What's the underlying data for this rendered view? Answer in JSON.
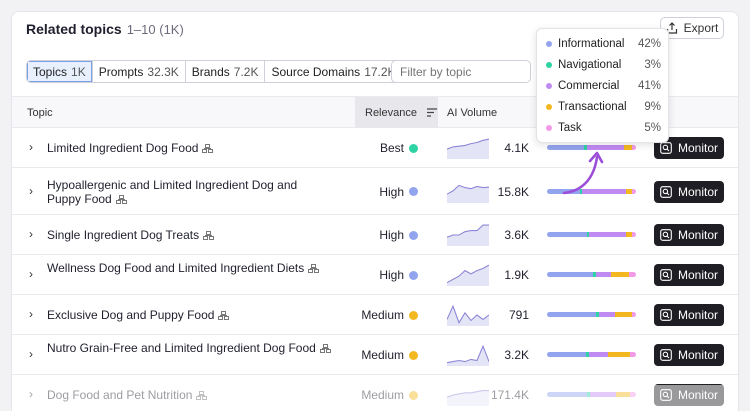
{
  "header": {
    "title": "Related topics",
    "subtitle": "1–10 (1K)",
    "export_label": "Export"
  },
  "tabs": [
    {
      "label": "Topics",
      "count": "1K",
      "active": true
    },
    {
      "label": "Prompts",
      "count": "32.3K",
      "active": false
    },
    {
      "label": "Brands",
      "count": "7.2K",
      "active": false
    },
    {
      "label": "Source Domains",
      "count": "17.2K",
      "active": false
    }
  ],
  "filter": {
    "placeholder": "Filter by topic"
  },
  "columns": {
    "topic": "Topic",
    "relevance": "Relevance",
    "ai_volume": "AI Volume"
  },
  "colors": {
    "informational": "#93a4ee",
    "navigational": "#2ed3a4",
    "commercial": "#c08af3",
    "transactional": "#f3b820",
    "task": "#f29ae6",
    "best": "#2ed3a4",
    "high": "#93a4ee",
    "medium": "#f3b820"
  },
  "intent_legend": [
    {
      "label": "Informational",
      "pct": "42%",
      "color": "#93a4ee"
    },
    {
      "label": "Navigational",
      "pct": "3%",
      "color": "#2ed3a4"
    },
    {
      "label": "Commercial",
      "pct": "41%",
      "color": "#c08af3"
    },
    {
      "label": "Transactional",
      "pct": "9%",
      "color": "#f3b820"
    },
    {
      "label": "Task",
      "pct": "5%",
      "color": "#f29ae6"
    }
  ],
  "monitor_label": "Monitor",
  "rows": [
    {
      "topic": "Limited Ingredient Dog Food",
      "relevance": "Best",
      "rel_color": "#2ed3a4",
      "volume": "4.1K",
      "intent": [
        42,
        3,
        41,
        9,
        5
      ],
      "spark": [
        0.55,
        0.45,
        0.42,
        0.38,
        0.3,
        0.25,
        0.15,
        0.1
      ]
    },
    {
      "topic": "Hypoallergenic and Limited Ingredient Dog and Puppy Food",
      "relevance": "High",
      "rel_color": "#93a4ee",
      "volume": "15.8K",
      "intent": [
        37,
        2,
        50,
        7,
        4
      ],
      "spark": [
        0.6,
        0.45,
        0.2,
        0.3,
        0.35,
        0.25,
        0.3,
        0.28
      ]
    },
    {
      "topic": "Single Ingredient Dog Treats",
      "relevance": "High",
      "rel_color": "#93a4ee",
      "volume": "3.6K",
      "intent": [
        45,
        2,
        42,
        6,
        5
      ],
      "spark": [
        0.6,
        0.5,
        0.5,
        0.35,
        0.3,
        0.3,
        0.05,
        0.05
      ]
    },
    {
      "topic": "Wellness Dog Food and Limited Ingredient Diets",
      "relevance": "High",
      "rel_color": "#93a4ee",
      "volume": "1.9K",
      "intent": [
        52,
        3,
        17,
        20,
        8
      ],
      "spark": [
        0.85,
        0.7,
        0.55,
        0.3,
        0.45,
        0.3,
        0.2,
        0.05
      ]
    },
    {
      "topic": "Exclusive Dog and Puppy Food",
      "relevance": "Medium",
      "rel_color": "#f3b820",
      "volume": "791",
      "intent": [
        55,
        3,
        18,
        19,
        5
      ],
      "spark": [
        0.7,
        0.1,
        0.85,
        0.4,
        0.75,
        0.5,
        0.7,
        0.5
      ]
    },
    {
      "topic": "Nutro Grain-Free and Limited Ingredient Dog Food",
      "relevance": "Medium",
      "rel_color": "#f3b820",
      "volume": "3.2K",
      "intent": [
        44,
        3,
        22,
        24,
        7
      ],
      "spark": [
        0.85,
        0.8,
        0.75,
        0.8,
        0.7,
        0.75,
        0.1,
        0.8
      ]
    },
    {
      "topic": "Dog Food and Pet Nutrition",
      "relevance": "Medium",
      "rel_color": "#f3b820",
      "volume": "171.4K",
      "intent": [
        45,
        3,
        30,
        15,
        7
      ],
      "spark": [
        0.6,
        0.5,
        0.45,
        0.4,
        0.4,
        0.35,
        0.3,
        0.3
      ]
    }
  ]
}
